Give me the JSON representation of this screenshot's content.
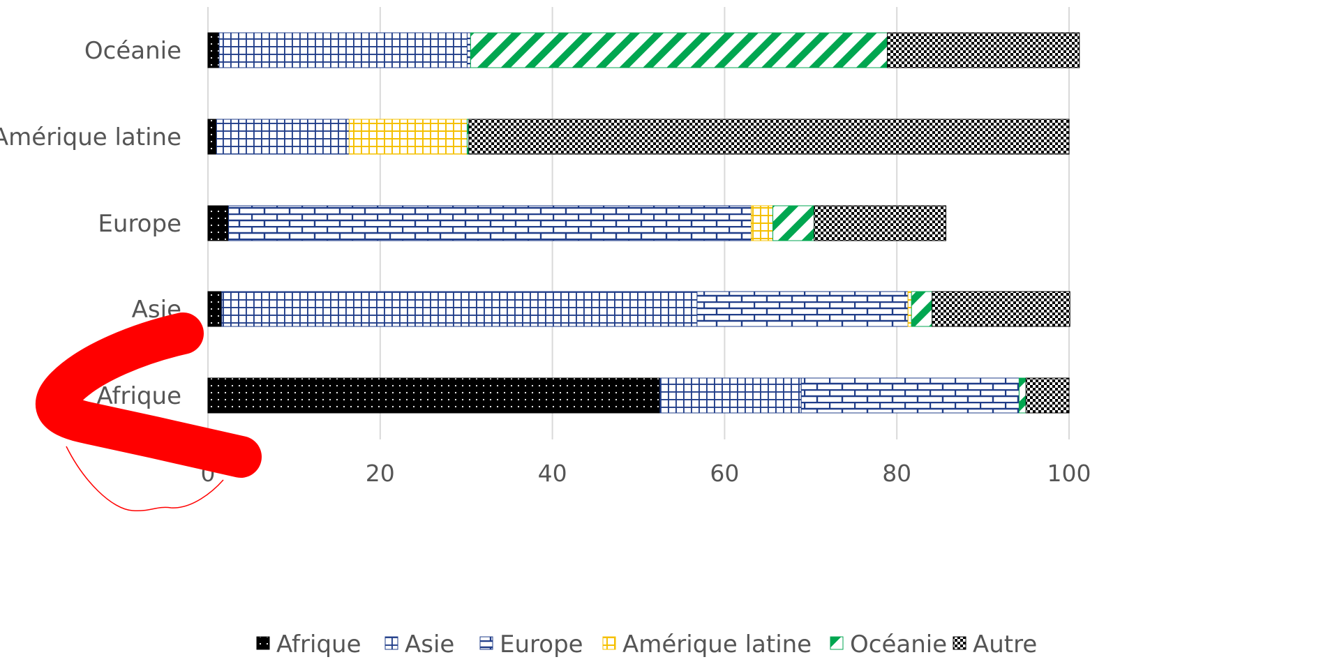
{
  "chart_data": {
    "type": "bar",
    "orientation": "horizontal",
    "stacked": true,
    "categories": [
      "Afrique",
      "Asie",
      "Europe",
      "Amérique latine",
      "Océanie"
    ],
    "series": [
      {
        "name": "Afrique",
        "values": [
          52.5,
          1.6,
          2.4,
          1.0,
          1.3
        ],
        "color": "#000000",
        "pattern": "dots"
      },
      {
        "name": "Asie",
        "values": [
          16.4,
          55.2,
          0.0,
          15.4,
          28.8
        ],
        "color": "#1f3c88",
        "pattern": "grid"
      },
      {
        "name": "Europe",
        "values": [
          25.3,
          24.5,
          60.7,
          0.0,
          0.4
        ],
        "color": "#1f3c88",
        "pattern": "brick"
      },
      {
        "name": "Amérique latine",
        "values": [
          0.0,
          0.4,
          2.5,
          13.7,
          0.0
        ],
        "color": "#f5c000",
        "pattern": "grid"
      },
      {
        "name": "Océanie",
        "values": [
          0.8,
          2.4,
          4.8,
          0.2,
          48.4
        ],
        "color": "#00a650",
        "pattern": "diagonal"
      },
      {
        "name": "Autre",
        "values": [
          5.0,
          16.0,
          15.3,
          69.7,
          22.3
        ],
        "color": "#000000",
        "pattern": "checker"
      }
    ],
    "xlim": [
      0,
      100
    ],
    "xticks": [
      "0",
      "20",
      "40",
      "60",
      "80",
      "100"
    ],
    "grid": true,
    "legend_position": "bottom"
  },
  "annotation": {
    "red_scribble_color": "#ff0000"
  }
}
